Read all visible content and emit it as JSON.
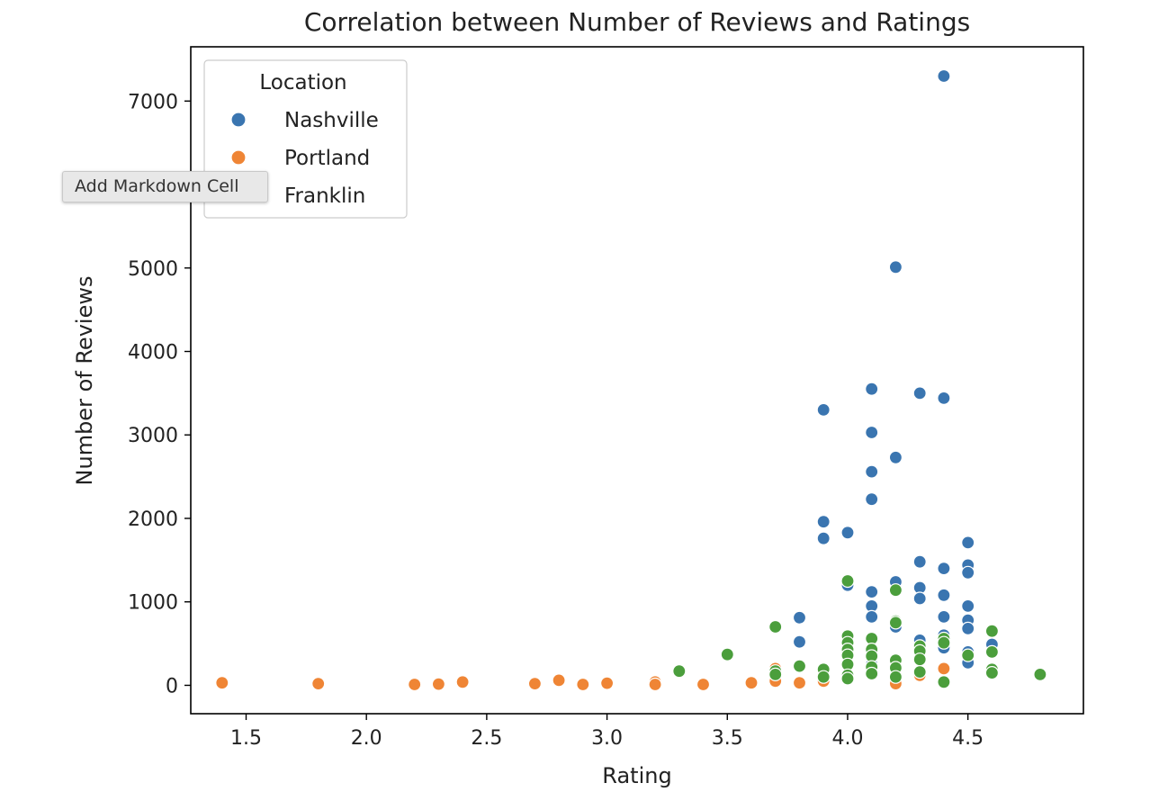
{
  "tooltip": {
    "text": "Add Markdown Cell"
  },
  "colors": {
    "nashville": "#3a75b0",
    "portland": "#ef8535",
    "franklin": "#4b9e3c",
    "marker_edge": "#ffffff",
    "axes": "#000000",
    "text": "#222222"
  },
  "chart_data": {
    "type": "scatter",
    "title": "Correlation between Number of Reviews and Ratings",
    "xlabel": "Rating",
    "ylabel": "Number of Reviews",
    "xlim": [
      1.27,
      4.98
    ],
    "ylim": [
      -340,
      7650
    ],
    "xticks": [
      1.5,
      2.0,
      2.5,
      3.0,
      3.5,
      4.0,
      4.5
    ],
    "xtick_labels": [
      "1.5",
      "2.0",
      "2.5",
      "3.0",
      "3.5",
      "4.0",
      "4.5"
    ],
    "yticks": [
      0,
      1000,
      2000,
      3000,
      4000,
      5000,
      6000,
      7000
    ],
    "ytick_labels": [
      "0",
      "1000",
      "2000",
      "3000",
      "4000",
      "5000",
      "6000",
      "7000"
    ],
    "grid": false,
    "legend": {
      "title": "Location",
      "placement": "top-left"
    },
    "series": [
      {
        "name": "Nashville",
        "color": "#3a75b0",
        "points": [
          [
            4.4,
            7300
          ],
          [
            4.2,
            5010
          ],
          [
            4.1,
            3550
          ],
          [
            4.3,
            3500
          ],
          [
            4.4,
            3440
          ],
          [
            3.9,
            3300
          ],
          [
            4.1,
            3030
          ],
          [
            4.2,
            2730
          ],
          [
            4.1,
            2560
          ],
          [
            4.1,
            2230
          ],
          [
            3.9,
            1960
          ],
          [
            4.0,
            1830
          ],
          [
            3.9,
            1760
          ],
          [
            4.5,
            1710
          ],
          [
            4.3,
            1480
          ],
          [
            4.5,
            1440
          ],
          [
            4.4,
            1400
          ],
          [
            4.5,
            1350
          ],
          [
            4.2,
            1240
          ],
          [
            4.0,
            1200
          ],
          [
            4.3,
            1170
          ],
          [
            4.1,
            1120
          ],
          [
            4.4,
            1080
          ],
          [
            4.3,
            1040
          ],
          [
            4.1,
            950
          ],
          [
            4.5,
            950
          ],
          [
            4.1,
            820
          ],
          [
            4.4,
            820
          ],
          [
            3.8,
            810
          ],
          [
            4.5,
            780
          ],
          [
            4.2,
            700
          ],
          [
            4.5,
            680
          ],
          [
            4.4,
            600
          ],
          [
            4.3,
            540
          ],
          [
            3.8,
            520
          ],
          [
            4.6,
            490
          ],
          [
            4.4,
            450
          ],
          [
            4.0,
            420
          ],
          [
            4.5,
            400
          ],
          [
            4.3,
            300
          ],
          [
            4.5,
            270
          ],
          [
            4.2,
            280
          ],
          [
            4.1,
            250
          ],
          [
            3.9,
            200
          ]
        ]
      },
      {
        "name": "Portland",
        "color": "#ef8535",
        "points": [
          [
            1.4,
            30
          ],
          [
            1.8,
            20
          ],
          [
            2.2,
            10
          ],
          [
            2.3,
            15
          ],
          [
            2.4,
            40
          ],
          [
            2.7,
            20
          ],
          [
            2.8,
            60
          ],
          [
            2.9,
            10
          ],
          [
            3.0,
            25
          ],
          [
            3.2,
            40
          ],
          [
            3.2,
            10
          ],
          [
            3.4,
            10
          ],
          [
            3.6,
            30
          ],
          [
            3.7,
            200
          ],
          [
            3.7,
            50
          ],
          [
            3.8,
            30
          ],
          [
            3.9,
            50
          ],
          [
            4.0,
            80
          ],
          [
            4.1,
            150
          ],
          [
            4.2,
            20
          ],
          [
            4.3,
            120
          ],
          [
            4.4,
            200
          ]
        ]
      },
      {
        "name": "Franklin",
        "color": "#4b9e3c",
        "points": [
          [
            4.0,
            1250
          ],
          [
            4.2,
            1140
          ],
          [
            4.2,
            770
          ],
          [
            4.2,
            750
          ],
          [
            3.7,
            700
          ],
          [
            4.6,
            650
          ],
          [
            4.0,
            590
          ],
          [
            4.1,
            560
          ],
          [
            4.4,
            560
          ],
          [
            4.0,
            510
          ],
          [
            4.4,
            510
          ],
          [
            4.3,
            470
          ],
          [
            4.0,
            430
          ],
          [
            4.1,
            430
          ],
          [
            4.3,
            410
          ],
          [
            4.6,
            400
          ],
          [
            3.5,
            370
          ],
          [
            4.0,
            360
          ],
          [
            4.5,
            360
          ],
          [
            4.1,
            350
          ],
          [
            4.3,
            310
          ],
          [
            4.2,
            300
          ],
          [
            4.0,
            250
          ],
          [
            3.8,
            230
          ],
          [
            4.1,
            220
          ],
          [
            4.2,
            210
          ],
          [
            3.9,
            190
          ],
          [
            4.6,
            190
          ],
          [
            3.3,
            170
          ],
          [
            3.7,
            170
          ],
          [
            4.3,
            160
          ],
          [
            4.6,
            150
          ],
          [
            4.1,
            140
          ],
          [
            3.7,
            130
          ],
          [
            4.8,
            130
          ],
          [
            4.0,
            120
          ],
          [
            3.9,
            100
          ],
          [
            4.2,
            100
          ],
          [
            4.0,
            80
          ],
          [
            4.4,
            40
          ]
        ]
      }
    ]
  }
}
